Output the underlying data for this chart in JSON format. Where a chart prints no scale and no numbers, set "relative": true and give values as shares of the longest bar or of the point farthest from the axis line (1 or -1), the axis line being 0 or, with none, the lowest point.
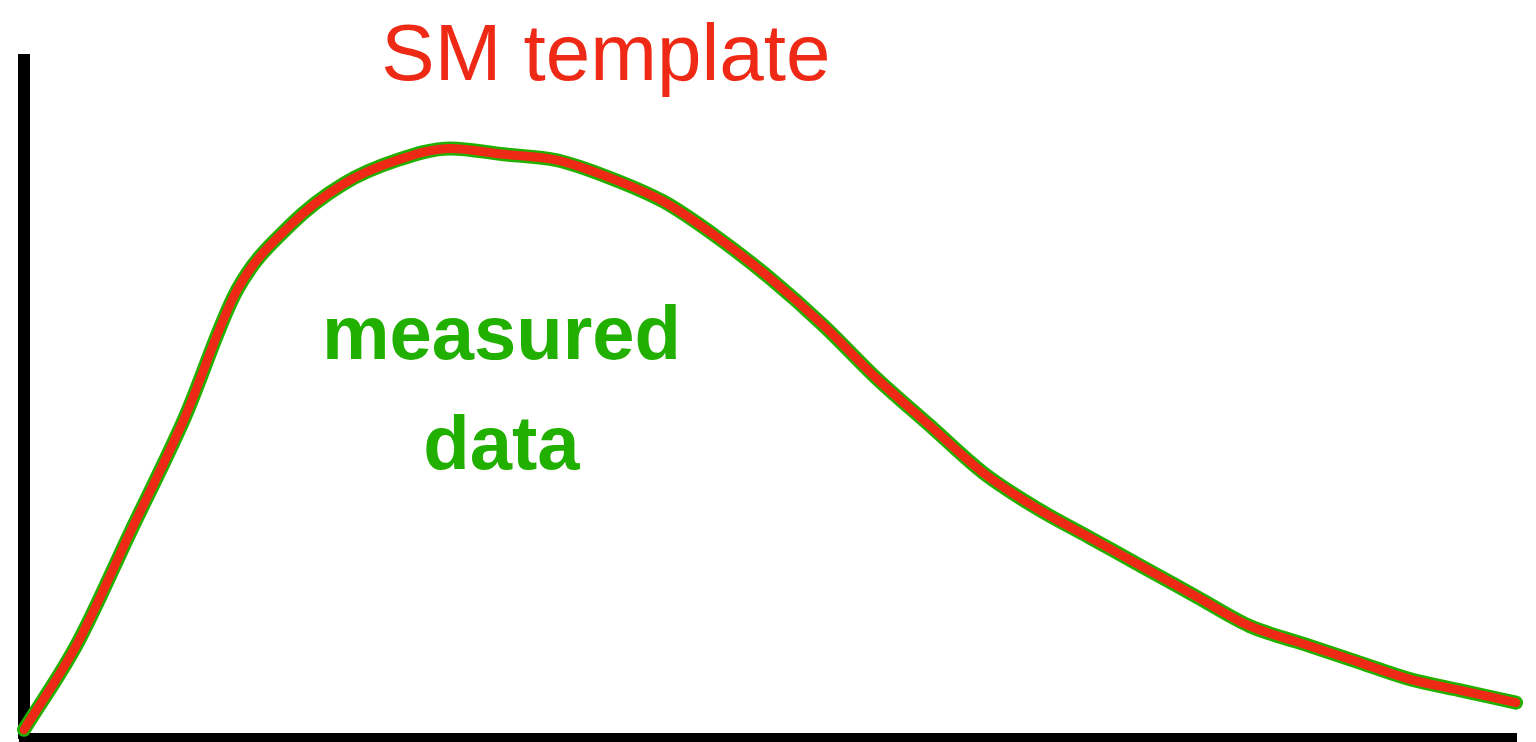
{
  "chart_data": {
    "type": "line",
    "relative": true,
    "marker": "none",
    "categories": [
      null,
      null,
      null,
      null,
      null,
      null,
      null,
      null,
      null,
      null,
      null,
      null,
      null,
      null,
      null,
      null,
      null,
      null,
      null,
      null,
      null,
      null,
      null,
      null,
      null,
      null,
      null,
      null,
      null
    ],
    "series": [
      {
        "name": "measured data",
        "color": "#22b000",
        "values": [
          0.014,
          0.16,
          0.35,
          0.54,
          0.76,
          0.87,
          0.94,
          0.98,
          1.0,
          0.99,
          0.98,
          0.95,
          0.91,
          0.85,
          0.78,
          0.7,
          0.61,
          0.53,
          0.45,
          0.39,
          0.34,
          0.29,
          0.24,
          0.19,
          0.16,
          0.13,
          0.1,
          0.08,
          0.06
        ]
      },
      {
        "name": "SM template",
        "color": "#ee2a16",
        "values": [
          0.014,
          0.16,
          0.35,
          0.54,
          0.76,
          0.87,
          0.94,
          0.98,
          1.0,
          0.99,
          0.98,
          0.95,
          0.91,
          0.85,
          0.78,
          0.7,
          0.61,
          0.53,
          0.45,
          0.39,
          0.34,
          0.29,
          0.24,
          0.19,
          0.16,
          0.13,
          0.1,
          0.08,
          0.06
        ]
      }
    ]
  }
}
